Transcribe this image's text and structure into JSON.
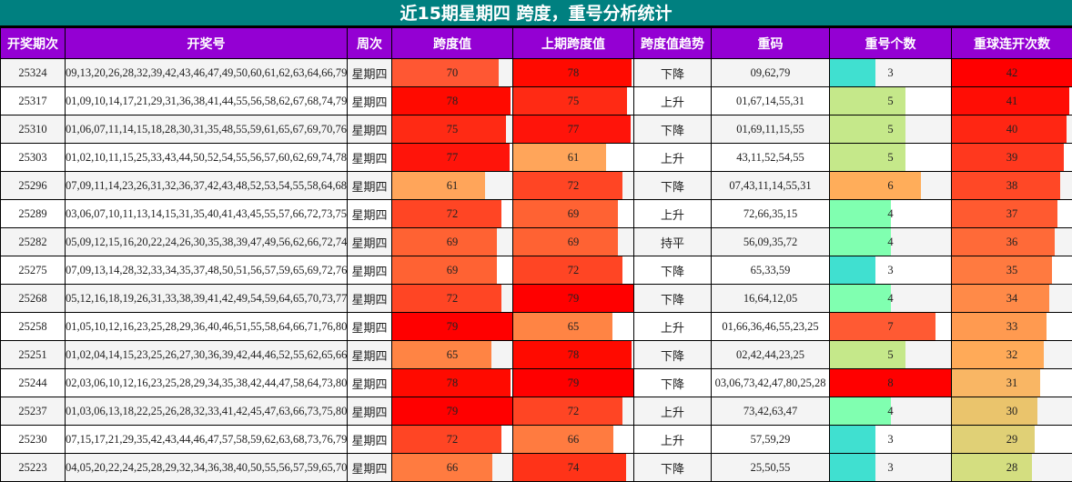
{
  "title": "近15期星期四 跨度，重号分析统计",
  "columns": [
    "开奖期次",
    "开奖号",
    "周次",
    "跨度值",
    "上期跨度值",
    "跨度值趋势",
    "重码",
    "重号个数",
    "重球连开次数"
  ],
  "scales": {
    "span_max": 79,
    "repeat_count_max": 8,
    "streak_max": 42
  },
  "rows": [
    {
      "period": "25324",
      "numbers": "09,13,20,26,28,32,39,42,43,46,47,49,50,60,61,62,63,64,66,79",
      "week": "星期四",
      "span": "70",
      "span_color": "#ff5733",
      "prev_span": "78",
      "prev_span_color": "#ff0a00",
      "trend": "下降",
      "repeat_nums": "09,62,79",
      "repeat_count": "3",
      "repeat_color": "#40e0d0",
      "streak": "42",
      "streak_color": "#ff0000"
    },
    {
      "period": "25317",
      "numbers": "01,09,10,14,17,21,29,31,36,38,41,44,55,56,58,62,67,68,74,79",
      "week": "星期四",
      "span": "78",
      "span_color": "#ff0a00",
      "prev_span": "75",
      "prev_span_color": "#ff2a14",
      "trend": "上升",
      "repeat_nums": "01,67,14,55,31",
      "repeat_count": "5",
      "repeat_color": "#c5e88a",
      "streak": "41",
      "streak_color": "#ff0d05"
    },
    {
      "period": "25310",
      "numbers": "01,06,07,11,14,15,18,28,30,31,35,48,55,59,61,65,67,69,70,76",
      "week": "星期四",
      "span": "75",
      "span_color": "#ff2a14",
      "prev_span": "77",
      "prev_span_color": "#ff140a",
      "trend": "下降",
      "repeat_nums": "01,69,11,15,55",
      "repeat_count": "5",
      "repeat_color": "#c5e88a",
      "streak": "40",
      "streak_color": "#ff2613"
    },
    {
      "period": "25303",
      "numbers": "01,02,10,11,15,25,33,43,44,50,52,54,55,56,57,60,62,69,74,78",
      "week": "星期四",
      "span": "77",
      "span_color": "#ff140a",
      "prev_span": "61",
      "prev_span_color": "#ffa55a",
      "trend": "上升",
      "repeat_nums": "43,11,52,54,55",
      "repeat_count": "5",
      "repeat_color": "#c5e88a",
      "streak": "39",
      "streak_color": "#ff381e"
    },
    {
      "period": "25296",
      "numbers": "07,09,11,14,23,26,31,32,36,37,42,43,48,52,53,54,55,58,64,68",
      "week": "星期四",
      "span": "61",
      "span_color": "#ffa55a",
      "prev_span": "72",
      "prev_span_color": "#ff4524",
      "trend": "下降",
      "repeat_nums": "07,43,11,14,55,31",
      "repeat_count": "6",
      "repeat_color": "#ffad5a",
      "streak": "38",
      "streak_color": "#ff4826"
    },
    {
      "period": "25289",
      "numbers": "03,06,07,10,11,13,14,15,31,35,40,41,43,45,55,57,66,72,73,75",
      "week": "星期四",
      "span": "72",
      "span_color": "#ff4524",
      "prev_span": "69",
      "prev_span_color": "#ff6233",
      "trend": "上升",
      "repeat_nums": "72,66,35,15",
      "repeat_count": "4",
      "repeat_color": "#80ffb0",
      "streak": "37",
      "streak_color": "#ff5a30"
    },
    {
      "period": "25282",
      "numbers": "05,09,12,15,16,20,22,24,26,30,35,38,39,47,49,56,62,66,72,74",
      "week": "星期四",
      "span": "69",
      "span_color": "#ff6233",
      "prev_span": "69",
      "prev_span_color": "#ff6233",
      "trend": "持平",
      "repeat_nums": "56,09,35,72",
      "repeat_count": "4",
      "repeat_color": "#80ffb0",
      "streak": "36",
      "streak_color": "#ff6a38"
    },
    {
      "period": "25275",
      "numbers": "07,09,13,14,28,32,33,34,35,37,48,50,51,56,57,59,65,69,72,76",
      "week": "星期四",
      "span": "69",
      "span_color": "#ff6233",
      "prev_span": "72",
      "prev_span_color": "#ff4524",
      "trend": "下降",
      "repeat_nums": "65,33,59",
      "repeat_count": "3",
      "repeat_color": "#40e0d0",
      "streak": "35",
      "streak_color": "#ff7a40"
    },
    {
      "period": "25268",
      "numbers": "05,12,16,18,19,26,31,33,38,39,41,42,49,54,59,64,65,70,73,77",
      "week": "星期四",
      "span": "72",
      "span_color": "#ff4524",
      "prev_span": "79",
      "prev_span_color": "#ff0000",
      "trend": "下降",
      "repeat_nums": "16,64,12,05",
      "repeat_count": "4",
      "repeat_color": "#80ffb0",
      "streak": "34",
      "streak_color": "#ff8a48"
    },
    {
      "period": "25258",
      "numbers": "01,05,10,12,16,23,25,28,29,36,40,46,51,55,58,64,66,71,76,80",
      "week": "星期四",
      "span": "79",
      "span_color": "#ff0000",
      "prev_span": "65",
      "prev_span_color": "#ff8444",
      "trend": "上升",
      "repeat_nums": "01,66,36,46,55,23,25",
      "repeat_count": "7",
      "repeat_color": "#ff5a33",
      "streak": "33",
      "streak_color": "#ff9a50"
    },
    {
      "period": "25251",
      "numbers": "01,02,04,14,15,23,25,26,27,30,36,39,42,44,46,52,55,62,65,66",
      "week": "星期四",
      "span": "65",
      "span_color": "#ff8444",
      "prev_span": "78",
      "prev_span_color": "#ff0a00",
      "trend": "下降",
      "repeat_nums": "02,42,44,23,25",
      "repeat_count": "5",
      "repeat_color": "#c5e88a",
      "streak": "32",
      "streak_color": "#ffaa58"
    },
    {
      "period": "25244",
      "numbers": "02,03,06,10,12,16,23,25,28,29,34,35,38,42,44,47,58,64,73,80",
      "week": "星期四",
      "span": "78",
      "span_color": "#ff0a00",
      "prev_span": "79",
      "prev_span_color": "#ff0000",
      "trend": "下降",
      "repeat_nums": "03,06,73,42,47,80,25,28",
      "repeat_count": "8",
      "repeat_color": "#ff0000",
      "streak": "31",
      "streak_color": "#f9b664"
    },
    {
      "period": "25237",
      "numbers": "01,03,06,13,18,22,25,26,28,32,33,41,42,45,47,63,66,73,75,80",
      "week": "星期四",
      "span": "79",
      "span_color": "#ff0000",
      "prev_span": "72",
      "prev_span_color": "#ff4524",
      "trend": "上升",
      "repeat_nums": "73,42,63,47",
      "repeat_count": "4",
      "repeat_color": "#80ffb0",
      "streak": "30",
      "streak_color": "#eac46c"
    },
    {
      "period": "25230",
      "numbers": "07,15,17,21,29,35,42,43,44,46,47,57,58,59,62,63,68,73,76,79",
      "week": "星期四",
      "span": "72",
      "span_color": "#ff4524",
      "prev_span": "66",
      "prev_span_color": "#ff7b40",
      "trend": "上升",
      "repeat_nums": "57,59,29",
      "repeat_count": "3",
      "repeat_color": "#40e0d0",
      "streak": "29",
      "streak_color": "#e0d076"
    },
    {
      "period": "25223",
      "numbers": "04,05,20,22,24,25,28,29,32,34,36,38,40,50,55,56,57,59,65,70",
      "week": "星期四",
      "span": "66",
      "span_color": "#ff7b40",
      "prev_span": "74",
      "prev_span_color": "#ff3318",
      "trend": "下降",
      "repeat_nums": "25,50,55",
      "repeat_count": "3",
      "repeat_color": "#40e0d0",
      "streak": "28",
      "streak_color": "#d4de80"
    }
  ]
}
